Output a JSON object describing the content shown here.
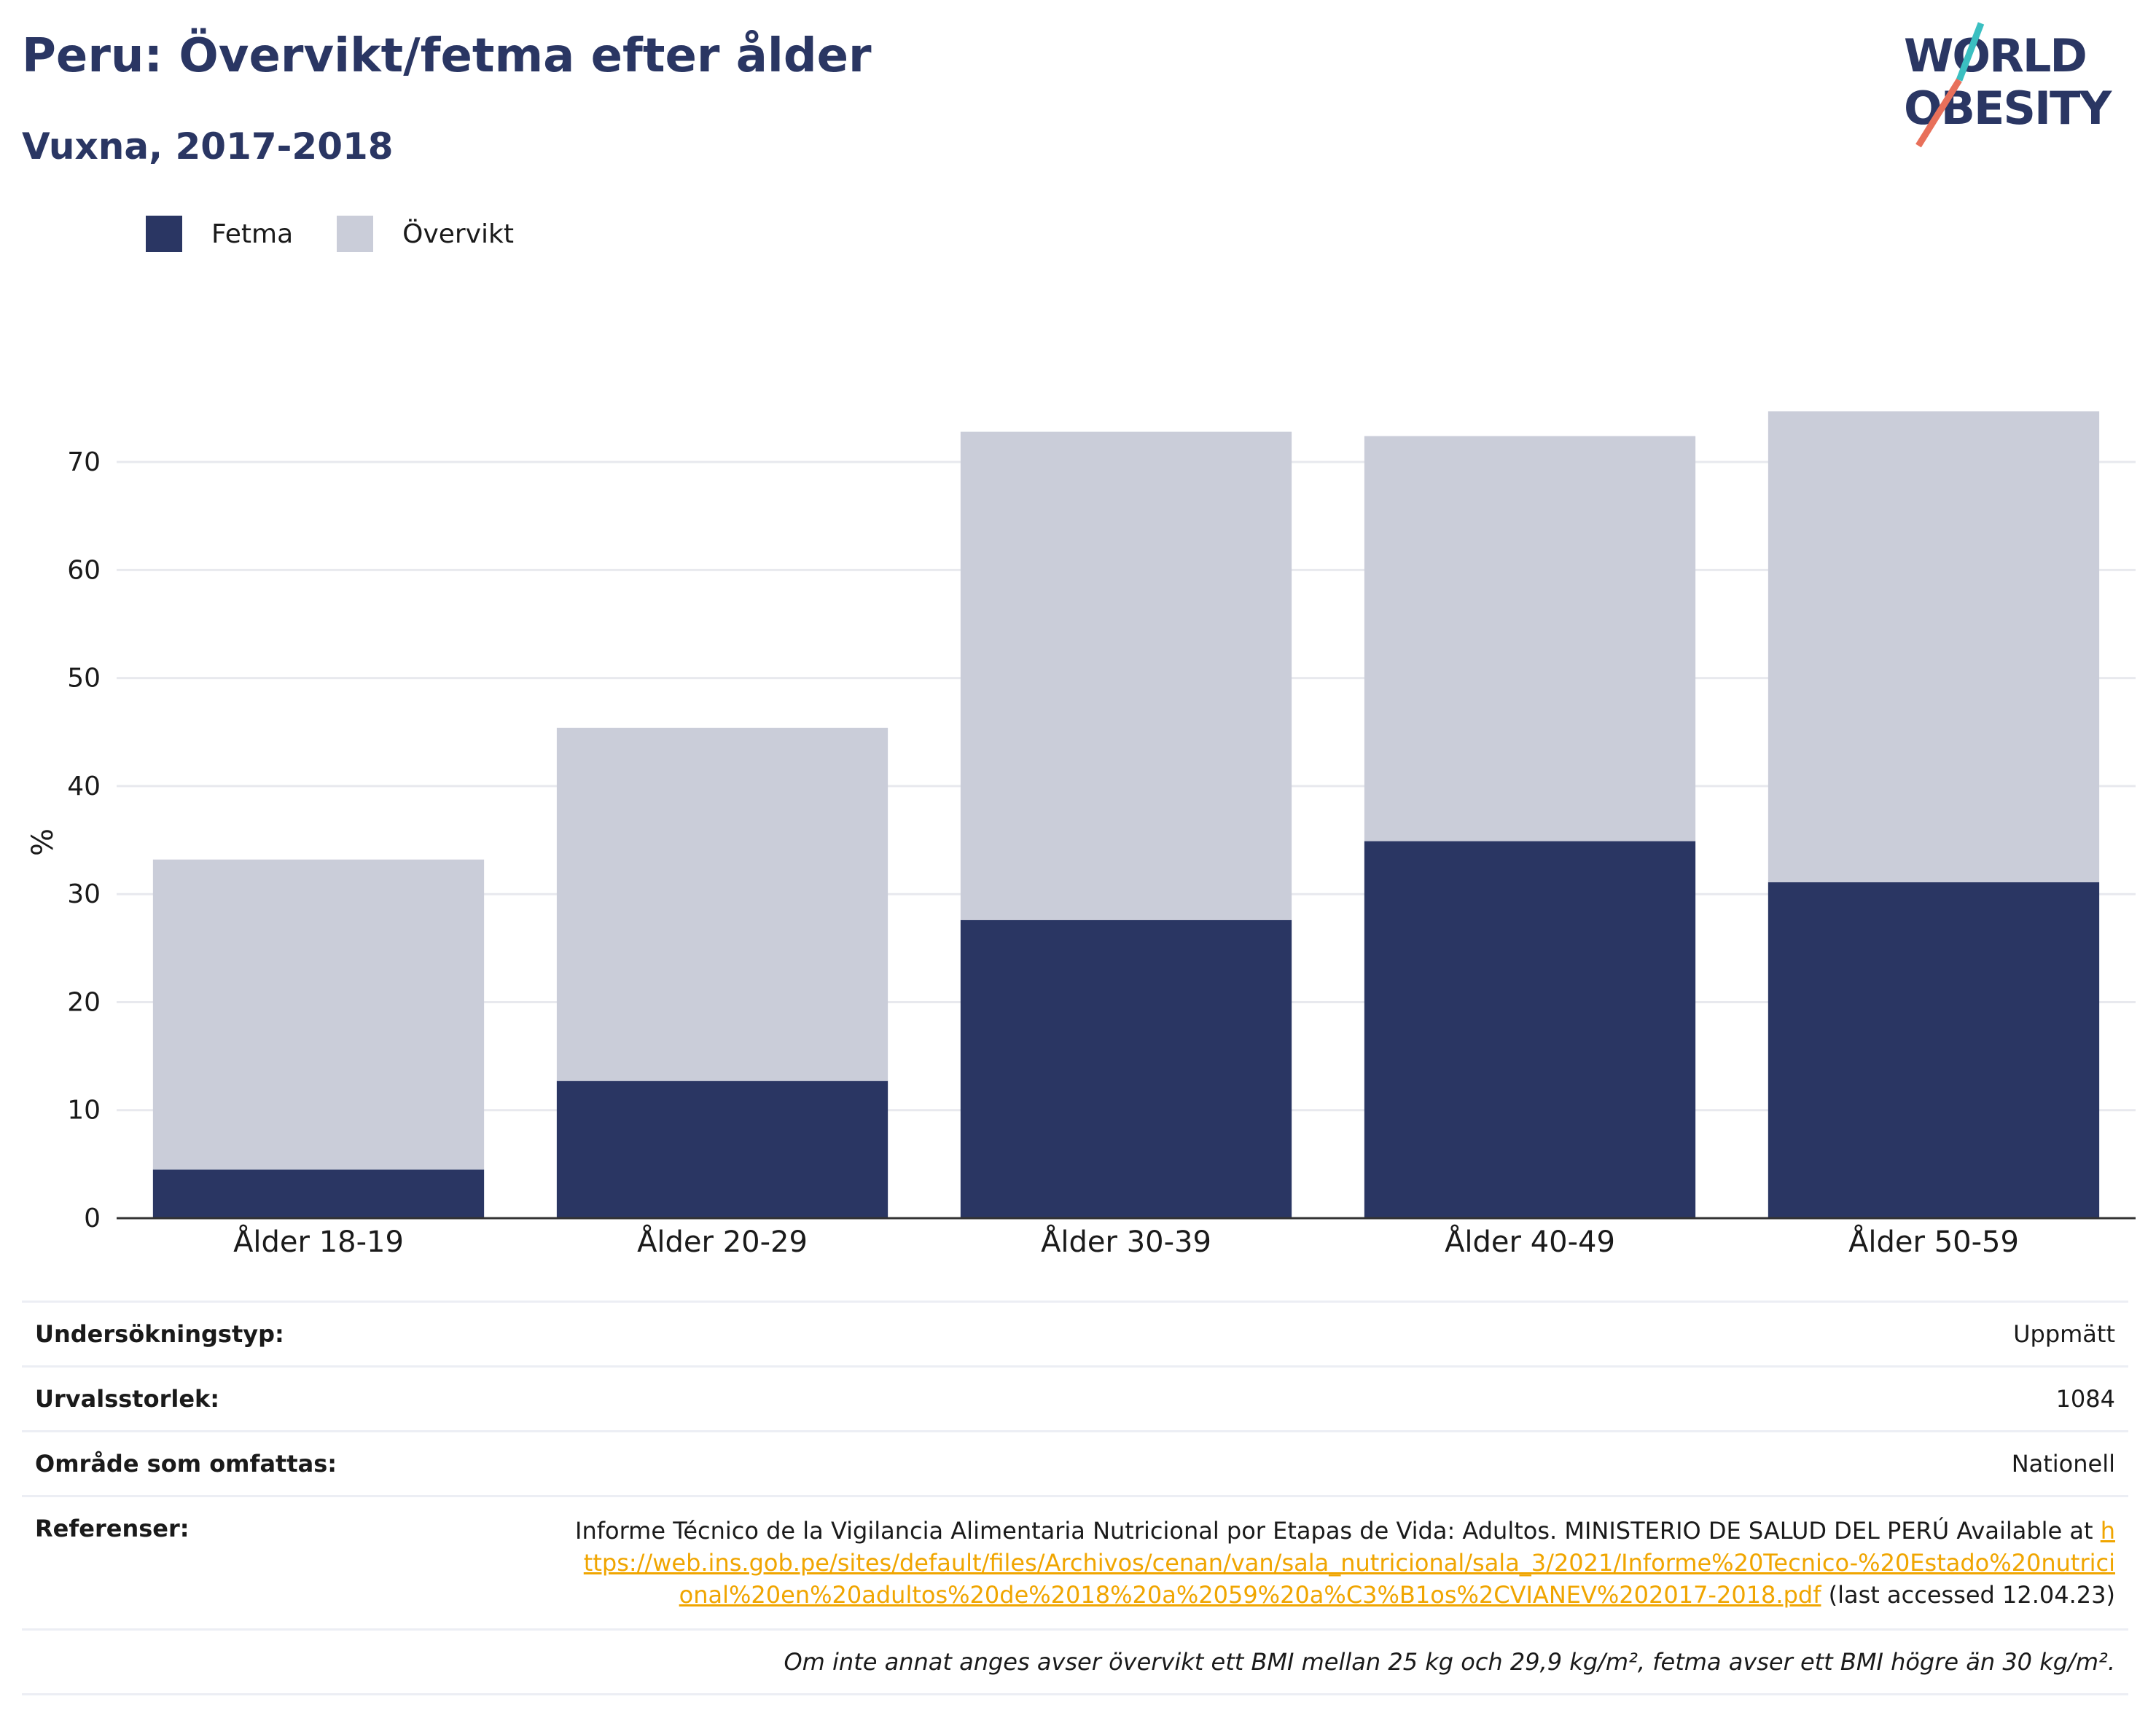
{
  "title": "Peru: Övervikt/fetma efter ålder",
  "subtitle": "Vuxna, 2017-2018",
  "logo": {
    "line1": "WORLD",
    "line2": "OBESITY"
  },
  "colors": {
    "fetma": "#2a3663",
    "overvikt": "#cacdd9",
    "title": "#2a3663",
    "link": "#f0a500"
  },
  "legend": {
    "fetma": "Fetma",
    "overvikt": "Övervikt"
  },
  "chart_data": {
    "type": "bar",
    "stacked": true,
    "categories": [
      "Ålder 18-19",
      "Ålder 20-29",
      "Ålder 30-39",
      "Ålder 40-49",
      "Ålder 50-59"
    ],
    "series": [
      {
        "name": "Fetma",
        "values": [
          4.5,
          12.7,
          27.6,
          34.9,
          31.1
        ]
      },
      {
        "name": "Övervikt",
        "values": [
          28.7,
          32.7,
          45.2,
          37.5,
          43.6
        ]
      }
    ],
    "ylabel": "%",
    "ylim": [
      0,
      75
    ],
    "yticks": [
      0,
      10,
      20,
      30,
      40,
      50,
      60,
      70
    ],
    "grid": true
  },
  "info": {
    "survey_type_label": "Undersökningstyp:",
    "survey_type_value": "Uppmätt",
    "sample_label": "Urvalsstorlek:",
    "sample_value": "1084",
    "area_label": "Område som omfattas:",
    "area_value": "Nationell",
    "ref_label": "Referenser:",
    "ref_text": "Informe Técnico de la Vigilancia Alimentaria Nutricional por Etapas de Vida: Adultos. MINISTERIO DE SALUD DEL PERÚ Available at",
    "ref_link": "https://web.ins.gob.pe/sites/default/files/Archivos/cenan/van/sala_nutricional/sala_3/2021/Informe%20Tecnico-%20Estado%20nutricional%20en%20adultos%20de%2018%20a%2059%20a%C3%B1os%2CVIANEV%202017-2018.pdf",
    "ref_tail": "(last accessed 12.04.23)",
    "note": "Om inte annat anges avser övervikt ett BMI mellan 25 kg och 29,9 kg/m², fetma avser ett BMI högre än 30 kg/m²."
  }
}
